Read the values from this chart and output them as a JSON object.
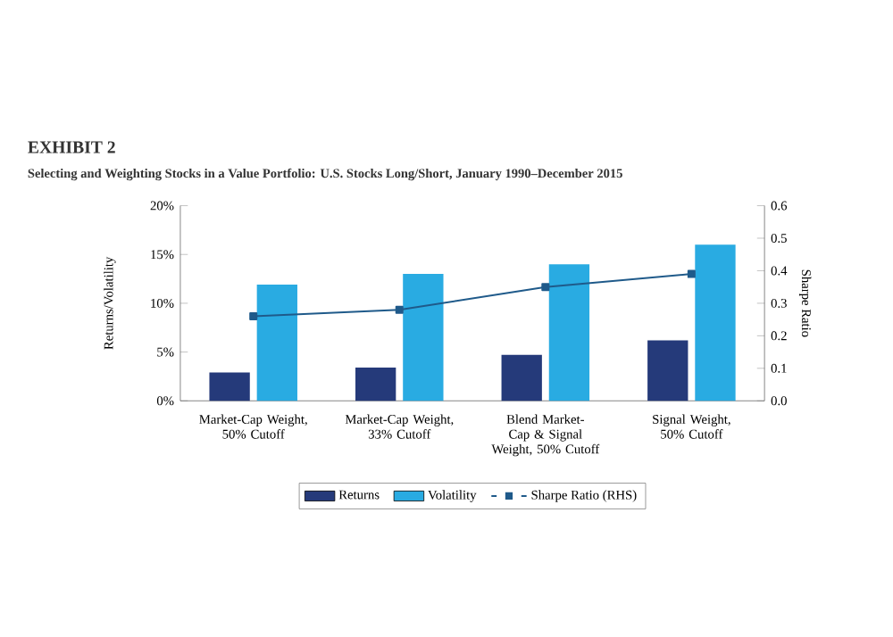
{
  "chart_data": {
    "type": "bar",
    "title": "EXHIBIT 2",
    "subtitle": "Selecting and Weighting Stocks in a Value Portfolio: U.S. Stocks Long/Short, January 1990–December 2015",
    "ylabel": "Returns/Volatility",
    "y2label": "Sharpe Ratio",
    "categories": [
      "Market-Cap Weight, 50% Cutoff",
      "Market-Cap Weight, 33% Cutoff",
      "Blend Market-Cap & Signal Weight, 50% Cutoff",
      "Signal Weight, 50% Cutoff"
    ],
    "series": [
      {
        "name": "Returns",
        "color": "#253a7a",
        "values": [
          2.9,
          3.4,
          4.7,
          6.2
        ]
      },
      {
        "name": "Volatility",
        "color": "#29abe2",
        "values": [
          11.9,
          13.0,
          14.0,
          16.0
        ]
      },
      {
        "name": "Sharpe Ratio (RHS)",
        "type": "line",
        "axis": "y2",
        "color": "#1f5a8a",
        "marker": "square",
        "values": [
          0.26,
          0.28,
          0.35,
          0.39
        ]
      }
    ],
    "ylim": [
      0,
      20
    ],
    "yticks": [
      {
        "value": 0,
        "label": "0%"
      },
      {
        "value": 5,
        "label": "5%"
      },
      {
        "value": 10,
        "label": "10%"
      },
      {
        "value": 15,
        "label": "15%"
      },
      {
        "value": 20,
        "label": "20%"
      }
    ],
    "y2lim": [
      0,
      0.6
    ],
    "y2ticks": [
      {
        "value": 0,
        "label": "0.0"
      },
      {
        "value": 0.1,
        "label": "0.1"
      },
      {
        "value": 0.2,
        "label": "0.2"
      },
      {
        "value": 0.3,
        "label": "0.3"
      },
      {
        "value": 0.4,
        "label": "0.4"
      },
      {
        "value": 0.5,
        "label": "0.5"
      },
      {
        "value": 0.6,
        "label": "0.6"
      }
    ],
    "legend": "bottom",
    "grid": false
  }
}
